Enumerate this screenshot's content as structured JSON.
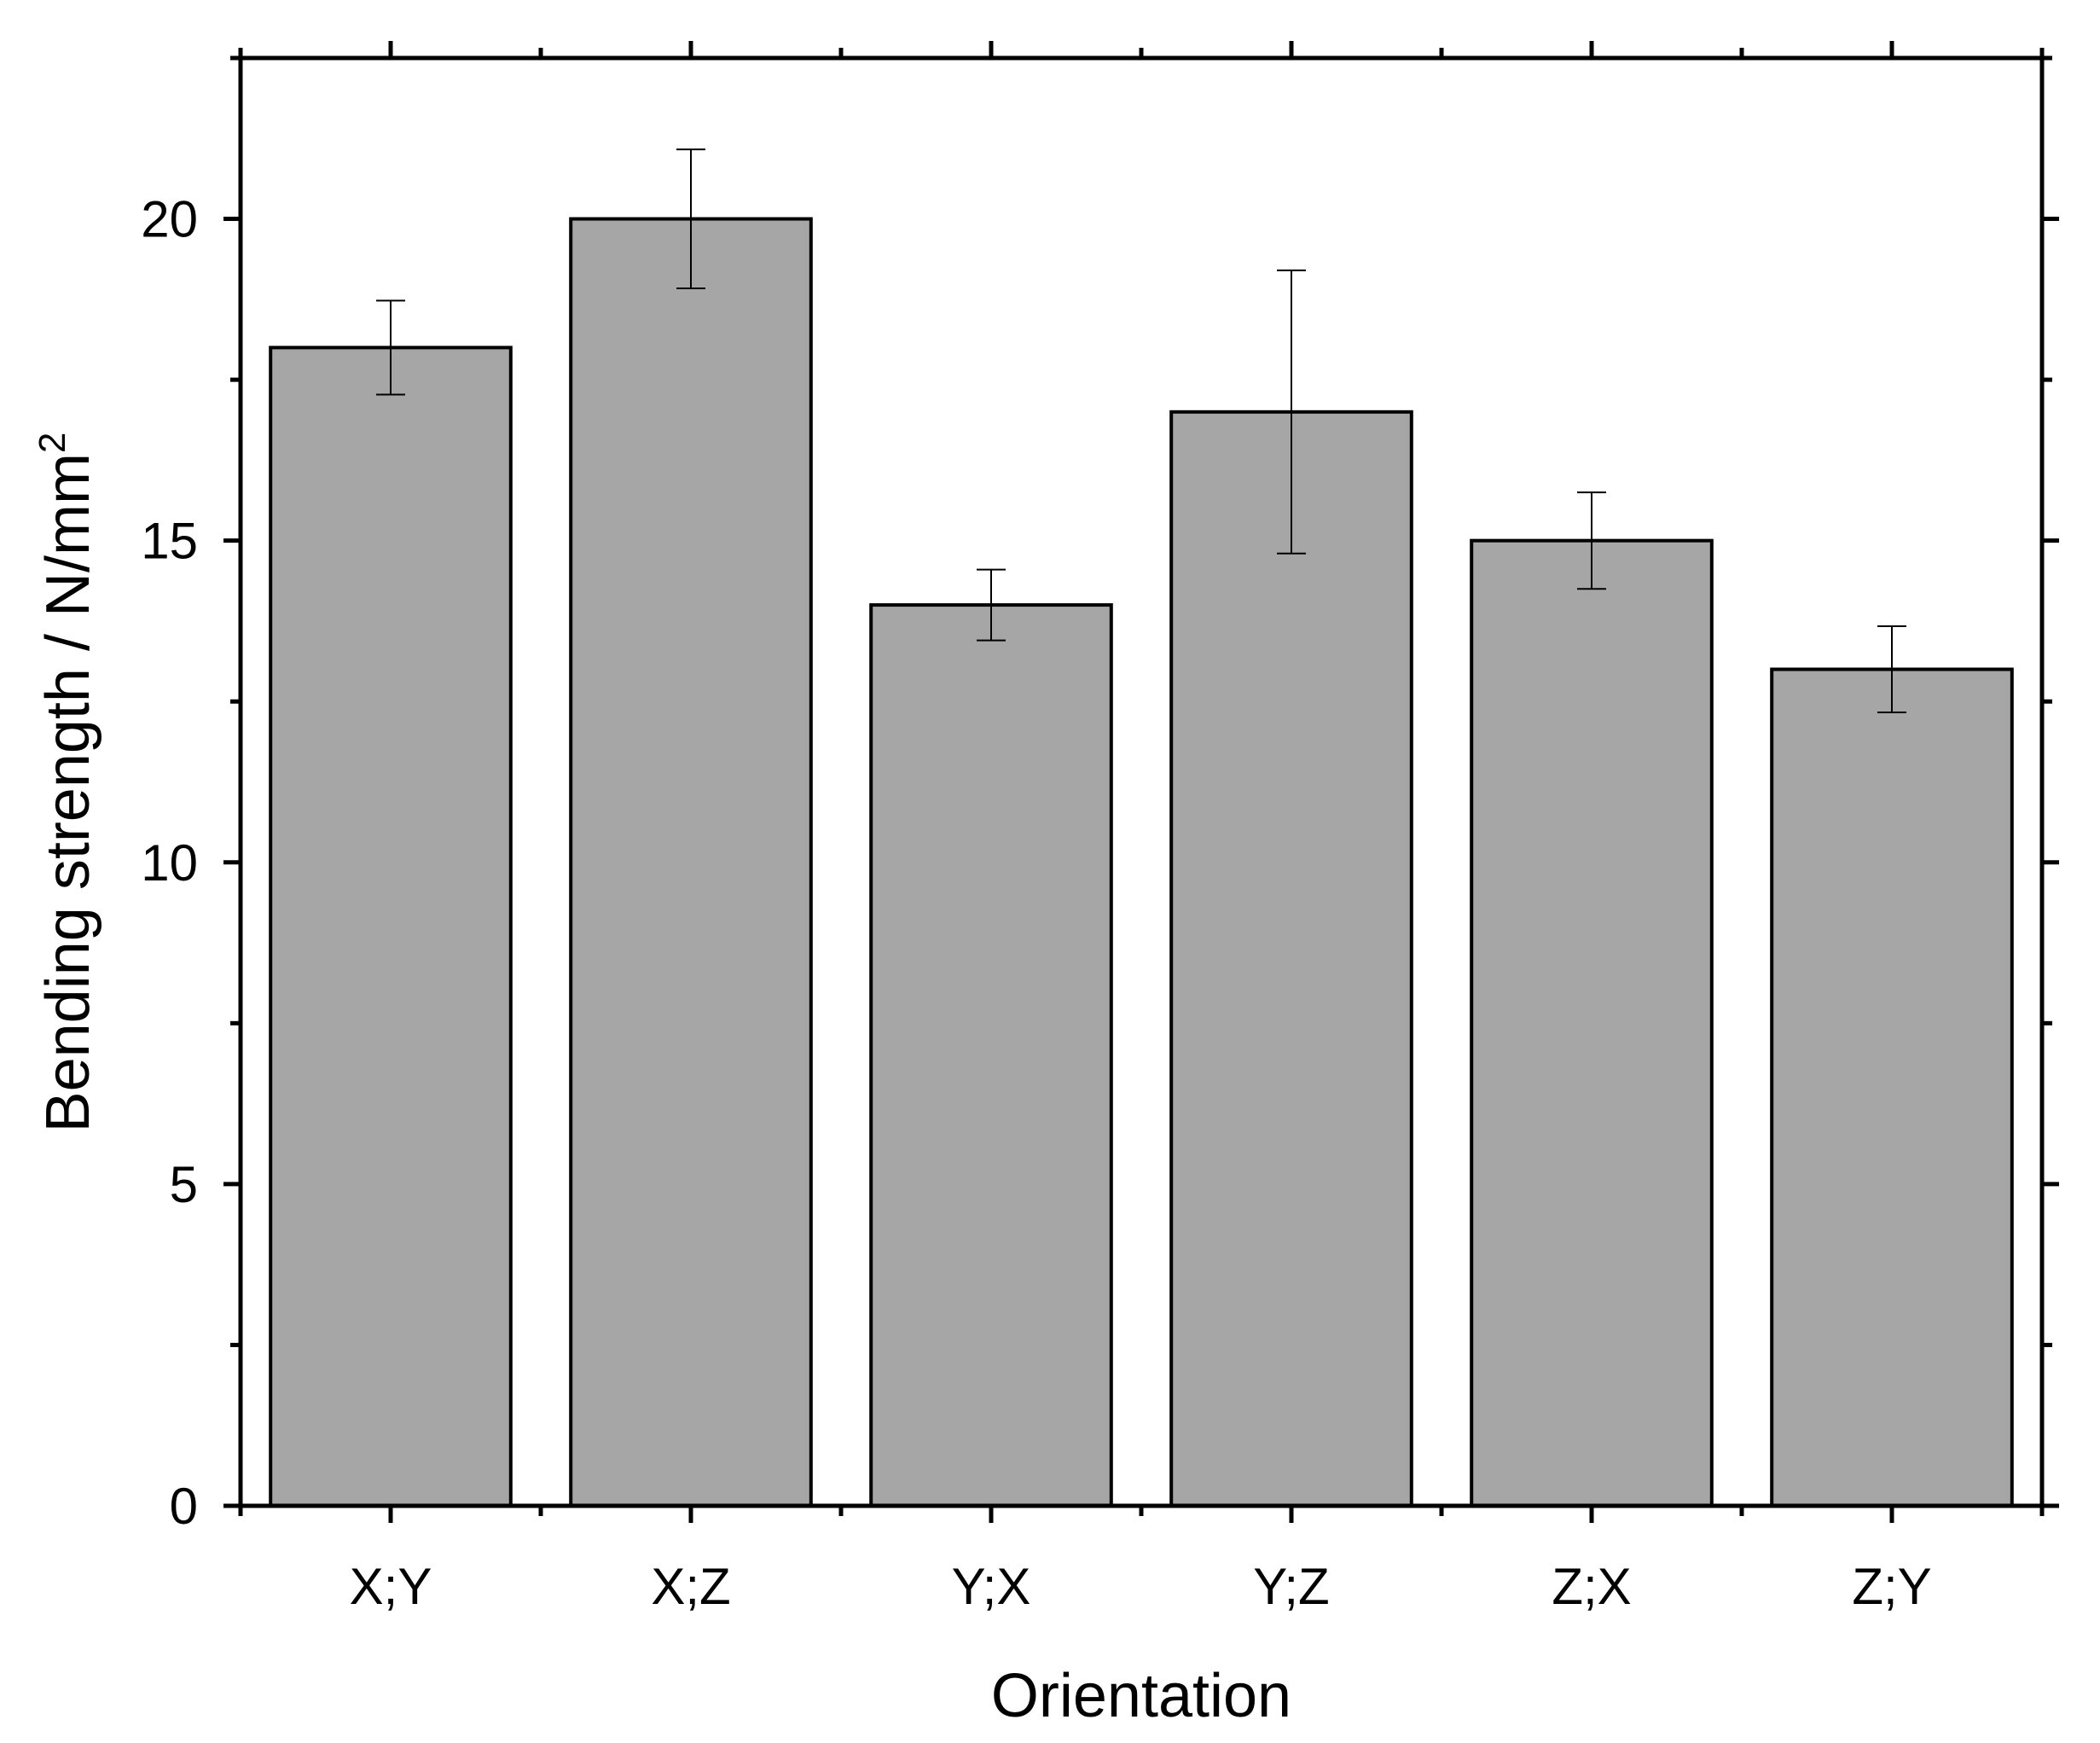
{
  "chart_data": {
    "type": "bar",
    "title": "",
    "categories": [
      "X;Y",
      "X;Z",
      "Y;X",
      "Y;Z",
      "Z;X",
      "Z;Y"
    ],
    "values": [
      18.0,
      20.0,
      14.0,
      17.0,
      15.0,
      13.0
    ],
    "error": [
      0.73,
      1.08,
      0.55,
      2.2,
      0.75,
      0.67
    ],
    "xlabel": "Orientation",
    "ylabel": "Bending strength / N/mm",
    "ylabel_superscript": "2",
    "ylim": [
      0,
      22.5
    ],
    "yticks": [
      0,
      5,
      10,
      15,
      20
    ],
    "ytick_labels": [
      "0",
      "5",
      "10",
      "15",
      "20"
    ],
    "minor_ytick_step": 2.5,
    "bar_color": "#a6a6a6",
    "bar_edge_color": "#000000",
    "grid": false,
    "legend": "none"
  }
}
